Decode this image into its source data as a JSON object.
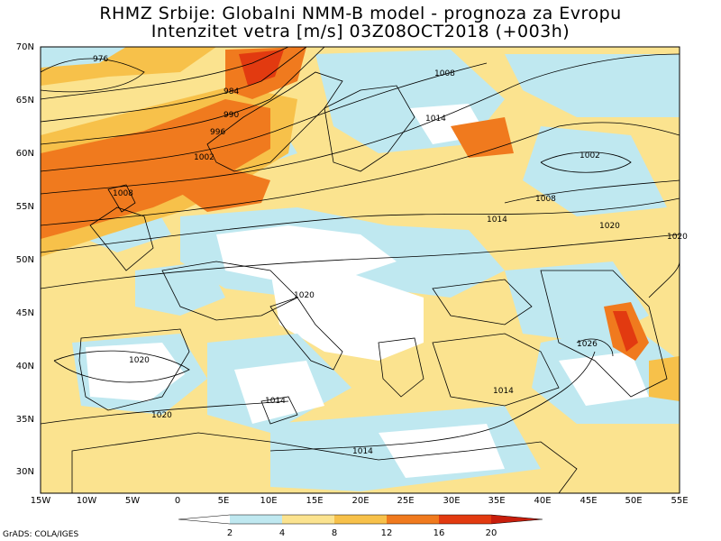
{
  "title": {
    "line1": "RHMZ Srbije: Globalni NMM-B model - prognoza za Evropu",
    "line2": "Intenzitet vetra [m/s] 03Z08OCT2018 (+003h)"
  },
  "axes": {
    "lat_labels": [
      "70N",
      "65N",
      "60N",
      "55N",
      "50N",
      "45N",
      "40N",
      "35N",
      "30N"
    ],
    "lon_labels": [
      "15W",
      "10W",
      "5W",
      "0",
      "5E",
      "10E",
      "15E",
      "20E",
      "25E",
      "30E",
      "35E",
      "40E",
      "45E",
      "50E",
      "55E"
    ]
  },
  "isobar_labels": [
    "976",
    "984",
    "990",
    "996",
    "1002",
    "1008",
    "1014",
    "1008",
    "1002",
    "1008",
    "1014",
    "1020",
    "1020",
    "1020",
    "1020",
    "1014",
    "1014",
    "1014",
    "1020",
    "1026"
  ],
  "colorbar": {
    "labels": [
      "2",
      "4",
      "8",
      "12",
      "16",
      "20"
    ],
    "colors": [
      "#ffffff",
      "#bfe8f0",
      "#fbe38f",
      "#f7c14a",
      "#f07a1e",
      "#e23a10",
      "#c81e0c"
    ]
  },
  "credit": "GrADS: COLA/IGES"
}
